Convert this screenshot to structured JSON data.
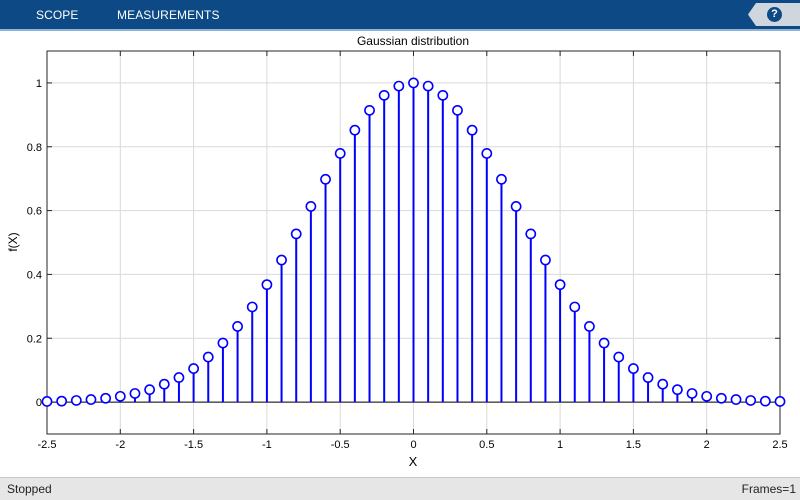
{
  "toolbar": {
    "tabs": [
      {
        "label": "SCOPE"
      },
      {
        "label": "MEASUREMENTS"
      }
    ],
    "help_label": "?"
  },
  "status": {
    "left": "Stopped",
    "right": "Frames=1"
  },
  "colors": {
    "toolbar_bg": "#0d4a85",
    "stem": "#0000ff",
    "grid": "#d9d9d9"
  },
  "chart_data": {
    "type": "scatter",
    "style": "stem",
    "title": "Gaussian distribution",
    "xlabel": "X",
    "ylabel": "f(X)",
    "xlim": [
      -2.5,
      2.5
    ],
    "ylim": [
      -0.1,
      1.1
    ],
    "xticks": [
      "-2.5",
      "-2",
      "-1.5",
      "-1",
      "-0.5",
      "0",
      "0.5",
      "1",
      "1.5",
      "2",
      "2.5"
    ],
    "xtick_values": [
      -2.5,
      -2,
      -1.5,
      -1,
      -0.5,
      0,
      0.5,
      1,
      1.5,
      2,
      2.5
    ],
    "yticks": [
      "0",
      "0.2",
      "0.4",
      "0.6",
      "0.8",
      "1"
    ],
    "ytick_values": [
      0,
      0.2,
      0.4,
      0.6,
      0.8,
      1
    ],
    "grid": true,
    "x": [
      -2.5,
      -2.4,
      -2.3,
      -2.2,
      -2.1,
      -2.0,
      -1.9,
      -1.8,
      -1.7,
      -1.6,
      -1.5,
      -1.4,
      -1.3,
      -1.2,
      -1.1,
      -1.0,
      -0.9,
      -0.8,
      -0.7,
      -0.6,
      -0.5,
      -0.4,
      -0.3,
      -0.2,
      -0.1,
      0.0,
      0.1,
      0.2,
      0.3,
      0.4,
      0.5,
      0.6,
      0.7,
      0.8,
      0.9,
      1.0,
      1.1,
      1.2,
      1.3,
      1.4,
      1.5,
      1.6,
      1.7,
      1.8,
      1.9,
      2.0,
      2.1,
      2.2,
      2.3,
      2.4,
      2.5
    ],
    "y": [
      0.002,
      0.003,
      0.005,
      0.008,
      0.012,
      0.018,
      0.027,
      0.039,
      0.056,
      0.077,
      0.105,
      0.141,
      0.185,
      0.237,
      0.298,
      0.368,
      0.445,
      0.527,
      0.613,
      0.698,
      0.779,
      0.852,
      0.914,
      0.961,
      0.99,
      1.0,
      0.99,
      0.961,
      0.914,
      0.852,
      0.779,
      0.698,
      0.613,
      0.527,
      0.445,
      0.368,
      0.298,
      0.237,
      0.185,
      0.141,
      0.105,
      0.077,
      0.056,
      0.039,
      0.027,
      0.018,
      0.012,
      0.008,
      0.005,
      0.003,
      0.002
    ]
  }
}
